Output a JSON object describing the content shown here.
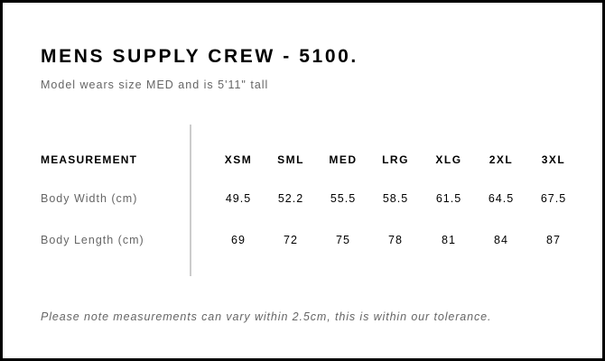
{
  "title": "MENS SUPPLY CREW - 5100.",
  "subtitle": "Model wears size MED and is 5'11\" tall",
  "table": {
    "header_label": "MEASUREMENT",
    "sizes": [
      "XSM",
      "SML",
      "MED",
      "LRG",
      "XLG",
      "2XL",
      "3XL"
    ],
    "rows": [
      {
        "label": "Body Width (cm)",
        "values": [
          "49.5",
          "52.2",
          "55.5",
          "58.5",
          "61.5",
          "64.5",
          "67.5"
        ]
      },
      {
        "label": "Body Length (cm)",
        "values": [
          "69",
          "72",
          "75",
          "78",
          "81",
          "84",
          "87"
        ]
      }
    ]
  },
  "note": "Please note measurements can vary within 2.5cm, this is within our tolerance."
}
